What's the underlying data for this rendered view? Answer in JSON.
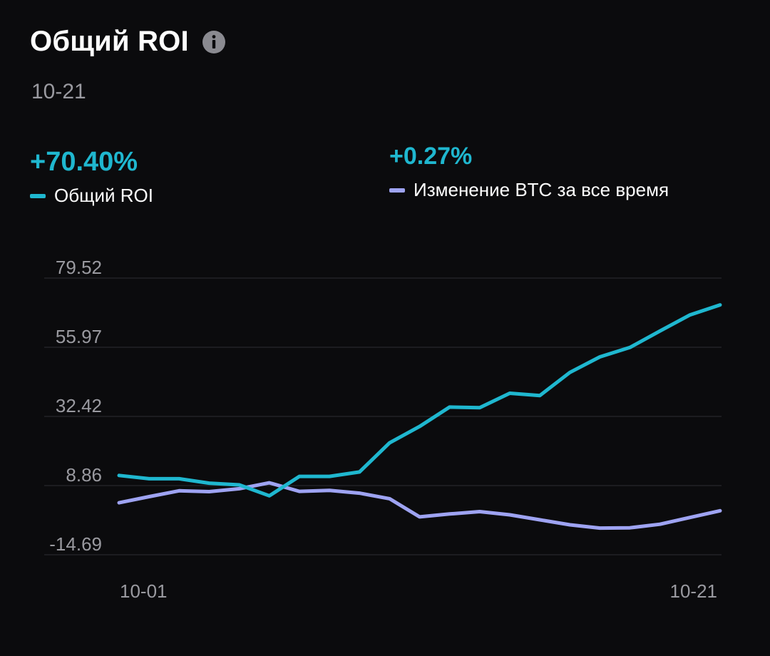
{
  "header": {
    "title": "Общий ROI",
    "info_icon": "info-icon",
    "date": "10-21"
  },
  "stats": [
    {
      "value": "+70.40%",
      "legend": "Общий ROI",
      "color": "#1fb7cf"
    },
    {
      "value": "+0.27%",
      "legend": "Изменение BTC за все время",
      "color": "#9ea3f2"
    }
  ],
  "chart_data": {
    "type": "line",
    "x": [
      "10-01",
      "10-02",
      "10-03",
      "10-04",
      "10-05",
      "10-06",
      "10-07",
      "10-08",
      "10-09",
      "10-10",
      "10-11",
      "10-12",
      "10-13",
      "10-14",
      "10-15",
      "10-16",
      "10-17",
      "10-18",
      "10-19",
      "10-20",
      "10-21"
    ],
    "x_tick_labels": [
      "10-01",
      "10-21"
    ],
    "y_ticks": [
      "79.52",
      "55.97",
      "32.42",
      "8.86",
      "-14.69"
    ],
    "ylim": [
      -14.69,
      79.52
    ],
    "grid": true,
    "series": [
      {
        "name": "Общий ROI",
        "color": "#1fb7cf",
        "values": [
          12.3,
          11.2,
          11.2,
          9.7,
          9.1,
          5.4,
          12.0,
          12.0,
          13.5,
          23.4,
          29.0,
          35.6,
          35.4,
          40.3,
          39.5,
          47.4,
          52.7,
          55.9,
          61.5,
          67.0,
          70.4
        ]
      },
      {
        "name": "Изменение BTC за все время",
        "color": "#9ea3f2",
        "values": [
          3.0,
          5.1,
          7.1,
          6.8,
          7.8,
          9.8,
          6.9,
          7.2,
          6.3,
          4.4,
          -1.8,
          -0.8,
          0.0,
          -1.1,
          -2.8,
          -4.5,
          -5.6,
          -5.5,
          -4.3,
          -2.0,
          0.3
        ]
      }
    ]
  }
}
